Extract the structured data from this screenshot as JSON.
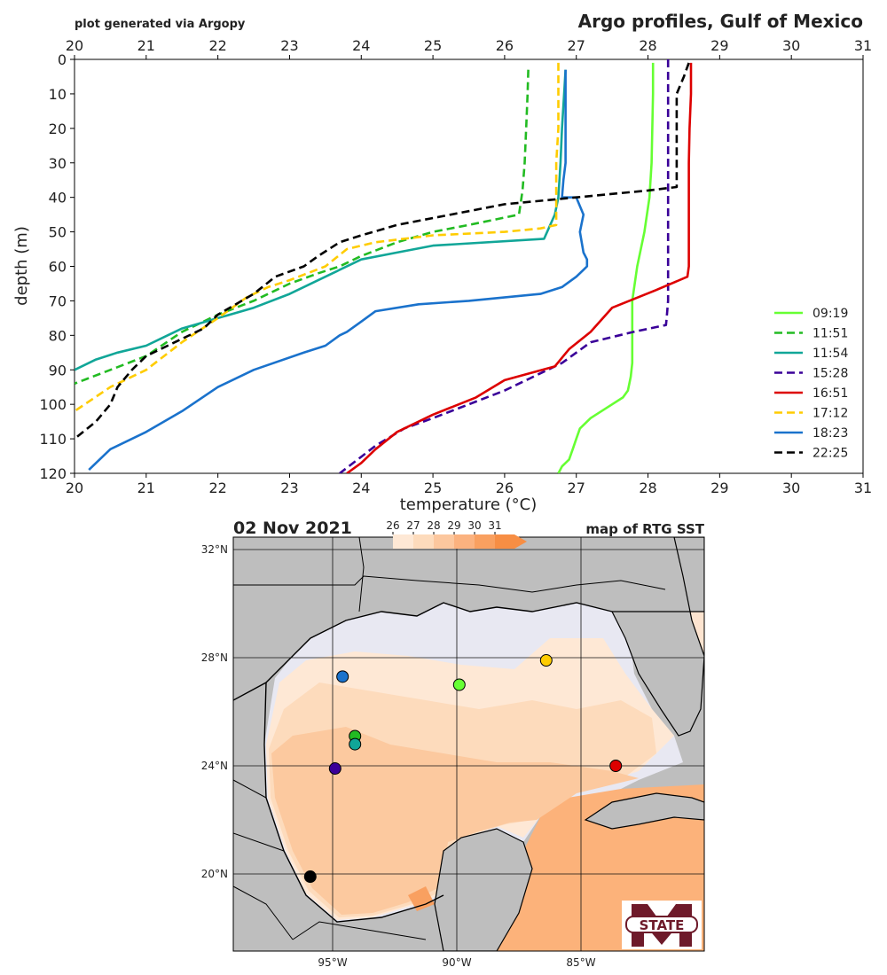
{
  "header": {
    "credit": "plot generated via Argopy",
    "title": "Argo profiles, Gulf of Mexico"
  },
  "colors": {
    "09:19": "#66ff33",
    "11:51": "#22bb22",
    "11:54": "#11a698",
    "15:28": "#3a0099",
    "16:51": "#dd0000",
    "17:12": "#ffcc00",
    "18:23": "#1a72cc",
    "22:25": "#000000"
  },
  "chart_data": [
    {
      "type": "line",
      "title": "Argo profiles, Gulf of Mexico",
      "xlabel": "temperature (°C)",
      "ylabel": "depth (m)",
      "xlim": [
        20,
        31
      ],
      "ylim": [
        120,
        0
      ],
      "y_inverted": true,
      "xticks": [
        "20",
        "21",
        "22",
        "23",
        "24",
        "25",
        "26",
        "27",
        "28",
        "29",
        "30",
        "31"
      ],
      "yticks": [
        "0",
        "10",
        "20",
        "30",
        "40",
        "50",
        "60",
        "70",
        "80",
        "90",
        "100",
        "110",
        "120"
      ],
      "legend": "lower right",
      "series": [
        {
          "name": "09:19",
          "style": "solid",
          "color": "#66ff33",
          "x": [
            28.07,
            28.07,
            28.05,
            28.02,
            27.95,
            27.85,
            27.78,
            27.78,
            27.78,
            27.78,
            27.76,
            27.72,
            27.65,
            27.5,
            27.2,
            27.05,
            27.0,
            26.95,
            26.9,
            26.8,
            26.75
          ],
          "y": [
            1,
            10,
            30,
            40,
            50,
            60,
            70,
            80,
            85,
            88,
            92,
            96,
            98,
            100,
            104,
            107,
            110,
            113,
            116,
            118,
            120
          ]
        },
        {
          "name": "11:51",
          "style": "dashed",
          "color": "#22bb22",
          "x": [
            26.33,
            26.32,
            26.3,
            26.28,
            26.25,
            26.2,
            25.5,
            25.0,
            24.5,
            24.0,
            23.7,
            23.4,
            23.0,
            22.5,
            22.0,
            21.5,
            21.0,
            20.5,
            20.0
          ],
          "y": [
            3,
            10,
            20,
            30,
            38,
            45,
            48,
            50,
            53,
            57,
            60,
            62,
            65,
            70,
            74,
            79,
            86,
            90,
            94
          ]
        },
        {
          "name": "11:54",
          "style": "solid",
          "color": "#11a698",
          "x": [
            26.85,
            26.83,
            26.8,
            26.78,
            26.75,
            26.7,
            26.55,
            25.0,
            24.5,
            24.0,
            23.6,
            23.0,
            22.5,
            22.0,
            21.5,
            21.2,
            21.0,
            20.6,
            20.3,
            20.0
          ],
          "y": [
            3,
            10,
            20,
            30,
            40,
            45,
            52,
            54,
            56,
            58,
            62,
            68,
            72,
            75,
            78,
            81,
            83,
            85,
            87,
            90
          ]
        },
        {
          "name": "15:28",
          "style": "dashed",
          "color": "#3a0099",
          "x": [
            28.28,
            28.28,
            28.28,
            28.28,
            28.28,
            28.28,
            28.28,
            28.26,
            28.25,
            27.8,
            27.2,
            26.8,
            26.0,
            25.5,
            25.0,
            24.6,
            24.2,
            23.7
          ],
          "y": [
            0,
            10,
            20,
            40,
            50,
            60,
            70,
            75,
            77,
            79,
            82,
            88,
            96,
            100,
            104,
            107,
            112,
            120
          ]
        },
        {
          "name": "16:51",
          "style": "solid",
          "color": "#dd0000",
          "x": [
            28.6,
            28.6,
            28.58,
            28.57,
            28.57,
            28.57,
            28.57,
            28.57,
            28.55,
            28.1,
            27.5,
            27.2,
            26.9,
            26.7,
            26.0,
            25.6,
            25.0,
            24.5,
            24.2,
            24.0,
            23.8
          ],
          "y": [
            1,
            10,
            20,
            30,
            40,
            50,
            55,
            60,
            63,
            67,
            72,
            79,
            84,
            89,
            93,
            98,
            103,
            108,
            113,
            117,
            120
          ]
        },
        {
          "name": "17:12",
          "style": "dashed",
          "color": "#ffcc00",
          "x": [
            26.75,
            26.75,
            26.75,
            26.72,
            26.72,
            26.72,
            26.72,
            26.5,
            26.0,
            25.0,
            24.2,
            23.8,
            23.5,
            23.0,
            22.7,
            22.4,
            22.0,
            21.5,
            21.0,
            20.5,
            20.0
          ],
          "y": [
            1,
            10,
            20,
            30,
            40,
            45,
            48,
            49,
            50,
            51,
            53,
            55,
            60,
            64,
            66,
            69,
            75,
            82,
            90,
            95,
            102
          ]
        },
        {
          "name": "18:23",
          "style": "solid",
          "color": "#1a72cc",
          "x": [
            26.85,
            26.85,
            26.85,
            26.85,
            26.82,
            26.8,
            26.92,
            27.0,
            27.1,
            27.05,
            27.1,
            27.15,
            27.15,
            27.1,
            27.0,
            26.8,
            26.5,
            25.5,
            24.8,
            24.2,
            24.0,
            23.8,
            23.7,
            23.5,
            23.2,
            22.5,
            22.0,
            21.5,
            21.0,
            20.5,
            20.2
          ],
          "y": [
            3,
            10,
            20,
            30,
            35,
            40,
            40,
            40,
            45,
            50,
            56,
            58,
            60,
            61,
            63,
            66,
            68,
            70,
            71,
            73,
            76,
            79,
            80,
            83,
            85,
            90,
            95,
            102,
            108,
            113,
            119
          ]
        },
        {
          "name": "22:25",
          "style": "dashed",
          "color": "#000000",
          "x": [
            28.57,
            28.5,
            28.4,
            28.4,
            28.4,
            28.0,
            27.0,
            26.0,
            25.0,
            24.5,
            24.0,
            23.7,
            23.4,
            23.2,
            22.8,
            22.5,
            22.0,
            21.8,
            21.5,
            21.0,
            20.8,
            20.6,
            20.5,
            20.3,
            20.0
          ],
          "y": [
            1,
            5,
            10,
            20,
            37,
            38,
            40,
            42,
            46,
            48,
            51,
            53,
            57,
            60,
            63,
            68,
            74,
            78,
            81,
            86,
            90,
            95,
            100,
            105,
            110
          ]
        }
      ]
    },
    {
      "type": "map",
      "title": "02 Nov 2021",
      "subtitle": "map of RTG SST",
      "lat_ticks": [
        "32°N",
        "28°N",
        "24°N",
        "20°N"
      ],
      "lon_ticks": [
        "95°W",
        "90°W",
        "85°W"
      ],
      "colorbar": {
        "ticks": [
          "26",
          "27",
          "28",
          "29",
          "30",
          "31"
        ],
        "colors": [
          "#fee8d5",
          "#fddbbc",
          "#fcc79e",
          "#fbb27f",
          "#f9a060",
          "#f78e44"
        ]
      },
      "floats": [
        {
          "name": "09:19",
          "lon": -89.9,
          "lat": 27.0
        },
        {
          "name": "11:51",
          "lon": -94.1,
          "lat": 25.1
        },
        {
          "name": "11:54",
          "lon": -94.1,
          "lat": 24.8
        },
        {
          "name": "15:28",
          "lon": -94.9,
          "lat": 23.9
        },
        {
          "name": "16:51",
          "lon": -83.6,
          "lat": 24.0
        },
        {
          "name": "17:12",
          "lon": -86.4,
          "lat": 27.9
        },
        {
          "name": "18:23",
          "lon": -94.6,
          "lat": 27.3
        },
        {
          "name": "22:25",
          "lon": -95.9,
          "lat": 19.9
        }
      ]
    }
  ],
  "logo": {
    "text": "STATE"
  }
}
